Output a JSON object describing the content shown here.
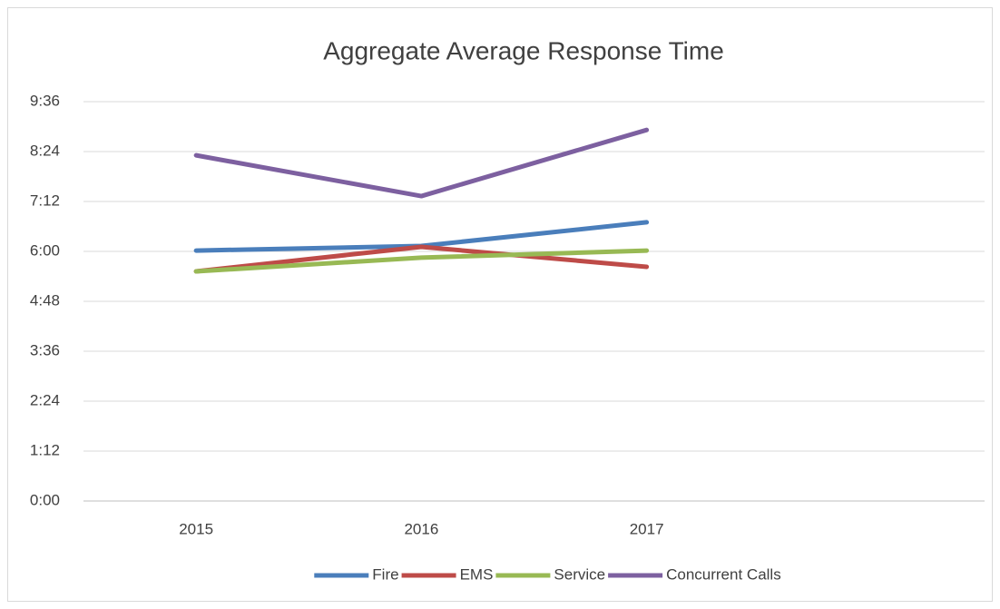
{
  "chart_data": {
    "type": "line",
    "title": "Aggregate Average Response Time",
    "categories": [
      "2015",
      "2016",
      "2017",
      null
    ],
    "series": [
      {
        "name": "Fire",
        "color": "#4a7ebb",
        "values": [
          6.02,
          6.13,
          6.7,
          null
        ]
      },
      {
        "name": "EMS",
        "color": "#be4b48",
        "values": [
          5.52,
          6.11,
          5.63,
          null
        ]
      },
      {
        "name": "Service",
        "color": "#98b954",
        "values": [
          5.52,
          5.85,
          6.02,
          null
        ]
      },
      {
        "name": "Concurrent Calls",
        "color": "#7d60a0",
        "values": [
          8.31,
          7.33,
          8.92,
          null
        ]
      }
    ],
    "ylim": [
      0,
      9.6
    ],
    "yticks": [
      {
        "value": 0,
        "label": "0:00"
      },
      {
        "value": 1.2,
        "label": "1:12"
      },
      {
        "value": 2.4,
        "label": "2:24"
      },
      {
        "value": 3.6,
        "label": "3:36"
      },
      {
        "value": 4.8,
        "label": "4:48"
      },
      {
        "value": 6.0,
        "label": "6:00"
      },
      {
        "value": 7.2,
        "label": "7:12"
      },
      {
        "value": 8.4,
        "label": "8:24"
      },
      {
        "value": 9.6,
        "label": "9:36"
      }
    ],
    "grid": true,
    "legend": "bottom"
  }
}
